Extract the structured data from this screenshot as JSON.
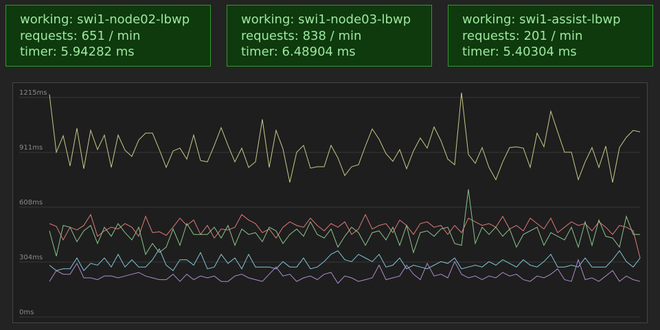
{
  "panels": [
    {
      "lines": [
        "working: swi1-node02-lbwp",
        "requests: 651 / min",
        "timer: 5.94282 ms"
      ]
    },
    {
      "lines": [
        "working: swi1-node03-lbwp",
        "requests: 838 / min",
        "timer: 6.48904 ms"
      ]
    },
    {
      "lines": [
        "working: swi1-assist-lbwp",
        "requests: 201 / min",
        "timer: 5.40304 ms"
      ]
    }
  ],
  "chart_data": {
    "type": "line",
    "categories": [
      null,
      null,
      null,
      null,
      null,
      null,
      null,
      null,
      null,
      null,
      null,
      null,
      null,
      null,
      null,
      null,
      null,
      null,
      null,
      null,
      null,
      null,
      null,
      null,
      null,
      null,
      null,
      null,
      null,
      null,
      null,
      null,
      null,
      null,
      null,
      null,
      null,
      null,
      null,
      null,
      null,
      null,
      null,
      null,
      null,
      null,
      null,
      null,
      null,
      null,
      null,
      null,
      null,
      null,
      null,
      null,
      null,
      null,
      null,
      null,
      null,
      null,
      null,
      null,
      null,
      null,
      null,
      null,
      null,
      null,
      null,
      null,
      null,
      null,
      null,
      null,
      null,
      null,
      null,
      null,
      null,
      null,
      null,
      null,
      null,
      null,
      null
    ],
    "ylim": [
      0,
      1215
    ],
    "yticks": [
      {
        "value": 0,
        "label": "0ms"
      },
      {
        "value": 304,
        "label": "304ms"
      },
      {
        "value": 608,
        "label": "608ms"
      },
      {
        "value": 911,
        "label": "911ms"
      },
      {
        "value": 1215,
        "label": "1215ms"
      }
    ],
    "grid": true,
    "series": [
      {
        "color": "#c9c98a",
        "values": [
          1205,
          885,
          976,
          809,
          1018,
          794,
          1006,
          900,
          980,
          801,
          980,
          896,
          862,
          953,
          991,
          991,
          900,
          801,
          892,
          908,
          847,
          980,
          839,
          832,
          923,
          1021,
          923,
          832,
          908,
          801,
          832,
          1067,
          801,
          1006,
          904,
          718,
          885,
          923,
          797,
          805,
          805,
          923,
          854,
          756,
          805,
          816,
          919,
          1014,
          957,
          877,
          835,
          900,
          794,
          892,
          964,
          908,
          1025,
          949,
          847,
          816,
          1215,
          873,
          824,
          911,
          801,
          733,
          832,
          911,
          915,
          908,
          801,
          991,
          915,
          1112,
          998,
          885,
          885,
          733,
          832,
          911,
          801,
          919,
          718,
          911,
          968,
          1006,
          998
        ]
      },
      {
        "color": "#e07a7a",
        "values": [
          490,
          475,
          400,
          470,
          455,
          480,
          540,
          420,
          450,
          470,
          460,
          490,
          470,
          420,
          530,
          440,
          445,
          425,
          470,
          520,
          480,
          510,
          430,
          480,
          410,
          460,
          455,
          470,
          540,
          510,
          490,
          440,
          460,
          410,
          470,
          500,
          480,
          470,
          520,
          480,
          450,
          490,
          470,
          500,
          430,
          460,
          540,
          460,
          480,
          490,
          440,
          510,
          480,
          430,
          490,
          500,
          470,
          480,
          430,
          480,
          440,
          520,
          500,
          480,
          490,
          470,
          530,
          460,
          480,
          450,
          520,
          490,
          460,
          520,
          440,
          470,
          500,
          480,
          490,
          450,
          500,
          470,
          430,
          480,
          470,
          450,
          300
        ]
      },
      {
        "color": "#8cc48c",
        "values": [
          450,
          310,
          480,
          470,
          390,
          450,
          480,
          380,
          470,
          420,
          490,
          440,
          400,
          470,
          320,
          380,
          330,
          360,
          460,
          370,
          490,
          430,
          430,
          430,
          470,
          410,
          480,
          370,
          460,
          430,
          440,
          390,
          470,
          450,
          380,
          430,
          460,
          420,
          500,
          430,
          410,
          460,
          360,
          420,
          470,
          440,
          370,
          440,
          450,
          400,
          470,
          370,
          480,
          330,
          440,
          450,
          420,
          460,
          470,
          380,
          370,
          680,
          380,
          470,
          430,
          470,
          420,
          460,
          360,
          430,
          450,
          470,
          370,
          440,
          420,
          400,
          470,
          360,
          500,
          370,
          510,
          420,
          410,
          360,
          530,
          430,
          430
        ]
      },
      {
        "color": "#7fc8dc",
        "values": [
          260,
          230,
          240,
          240,
          300,
          230,
          270,
          260,
          300,
          250,
          320,
          250,
          290,
          250,
          250,
          290,
          350,
          260,
          230,
          290,
          290,
          260,
          330,
          240,
          250,
          320,
          270,
          300,
          240,
          320,
          250,
          250,
          250,
          240,
          280,
          250,
          250,
          300,
          240,
          250,
          280,
          320,
          340,
          290,
          280,
          320,
          300,
          280,
          320,
          250,
          260,
          300,
          240,
          260,
          250,
          240,
          260,
          280,
          270,
          300,
          240,
          250,
          260,
          250,
          280,
          260,
          290,
          270,
          250,
          290,
          260,
          250,
          280,
          320,
          250,
          250,
          260,
          250,
          300,
          250,
          250,
          250,
          290,
          340,
          280,
          250,
          300
        ]
      },
      {
        "color": "#b08ccc",
        "values": [
          170,
          230,
          210,
          210,
          270,
          190,
          190,
          180,
          200,
          200,
          190,
          200,
          210,
          220,
          200,
          190,
          180,
          180,
          210,
          170,
          210,
          180,
          200,
          190,
          200,
          170,
          170,
          200,
          210,
          190,
          180,
          170,
          210,
          250,
          200,
          210,
          170,
          190,
          200,
          180,
          210,
          220,
          160,
          200,
          190,
          170,
          180,
          190,
          260,
          180,
          190,
          200,
          260,
          210,
          180,
          270,
          200,
          210,
          190,
          280,
          210,
          190,
          200,
          180,
          200,
          190,
          220,
          200,
          210,
          180,
          170,
          200,
          190,
          210,
          240,
          180,
          170,
          290,
          180,
          190,
          170,
          200,
          230,
          170,
          200,
          180,
          170
        ]
      }
    ]
  }
}
